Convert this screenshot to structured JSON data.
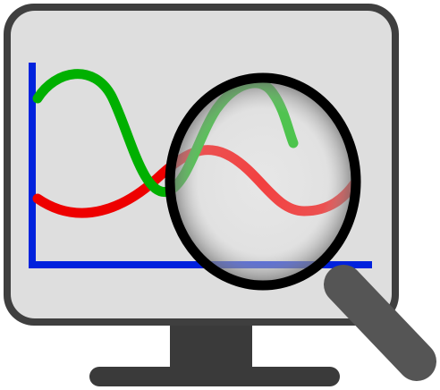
{
  "icon": {
    "name": "data-analysis-monitor-magnifier",
    "colors": {
      "monitor_frame": "#3f3f3f",
      "screen_fill": "#dedede",
      "stand": "#3a3a3a",
      "axis": "#0022dd",
      "green_series": "#00b000",
      "red_series": "#ee0000",
      "lens_rim": "#000000",
      "handle": "#555555"
    }
  }
}
